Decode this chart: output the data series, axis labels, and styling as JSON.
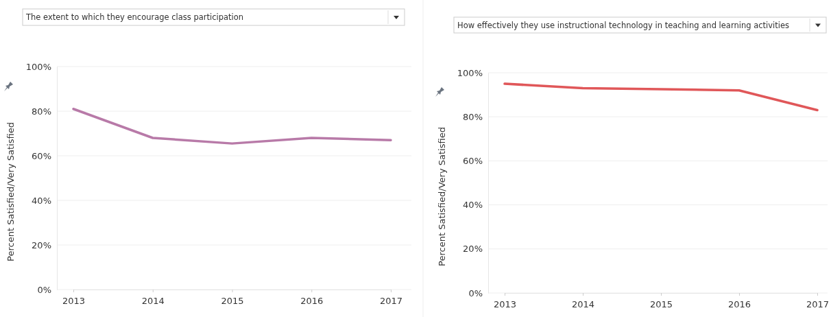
{
  "chart_data": [
    {
      "type": "line",
      "title": "The extent to which they encourage class participation",
      "ylabel": "Percent Satisfied/Very Satisfied",
      "categories": [
        "2013",
        "2014",
        "2015",
        "2016",
        "2017"
      ],
      "series": [
        {
          "color": "#b87aa8",
          "values": [
            81,
            68,
            65.5,
            68,
            67
          ]
        }
      ],
      "ylim": [
        0,
        100
      ],
      "yticks": [
        {
          "value": 0,
          "label": "0%"
        },
        {
          "value": 20,
          "label": "20%"
        },
        {
          "value": 40,
          "label": "40%"
        },
        {
          "value": 60,
          "label": "60%"
        },
        {
          "value": 80,
          "label": "80%"
        },
        {
          "value": 100,
          "label": "100%"
        }
      ],
      "grid": "y",
      "legend": false,
      "marker": "none"
    },
    {
      "type": "line",
      "title": "How effectively they use instructional technology in teaching and learning activities",
      "ylabel": "Percent Satisfied/Very Satisfied",
      "categories": [
        "2013",
        "2014",
        "2015",
        "2016",
        "2017"
      ],
      "series": [
        {
          "color": "#e05759",
          "values": [
            95,
            93,
            92.5,
            92,
            83
          ]
        }
      ],
      "ylim": [
        0,
        100
      ],
      "yticks": [
        {
          "value": 0,
          "label": "0%"
        },
        {
          "value": 20,
          "label": "20%"
        },
        {
          "value": 40,
          "label": "40%"
        },
        {
          "value": 60,
          "label": "60%"
        },
        {
          "value": 80,
          "label": "80%"
        },
        {
          "value": 100,
          "label": "100%"
        }
      ],
      "grid": "y",
      "legend": false,
      "marker": "none"
    }
  ]
}
